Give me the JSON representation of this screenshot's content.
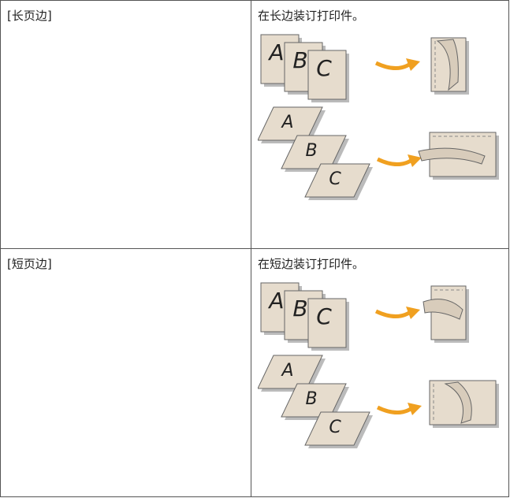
{
  "table": {
    "rows": [
      [
        "[长页边]",
        "在长边装订打印件。"
      ],
      [
        "[短页边]",
        "在短边装订打印件。"
      ]
    ]
  },
  "figure_letters": [
    "A",
    "B",
    "C"
  ]
}
